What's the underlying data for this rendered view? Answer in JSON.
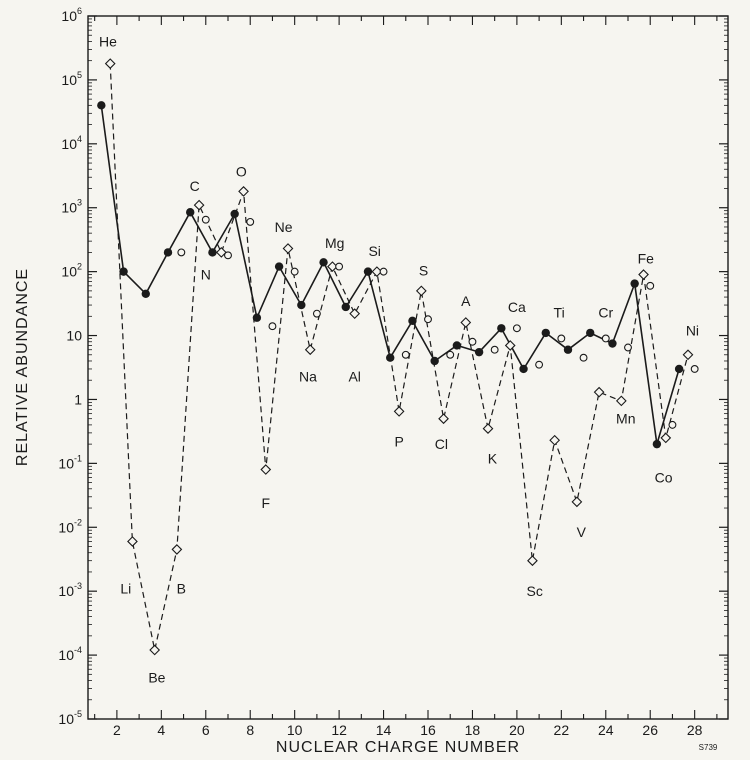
{
  "chart_data": {
    "type": "line",
    "scale_y": "log",
    "grid": false,
    "legend": "none",
    "xlabel": "NUCLEAR CHARGE NUMBER",
    "ylabel": "RELATIVE ABUNDANCE",
    "xlim": [
      0.7,
      29.5
    ],
    "ylim": [
      1e-05,
      1000000
    ],
    "x_ticks": [
      {
        "value": 2,
        "label": "2"
      },
      {
        "value": 4,
        "label": "4"
      },
      {
        "value": 6,
        "label": "6"
      },
      {
        "value": 8,
        "label": "8"
      },
      {
        "value": 10,
        "label": "10"
      },
      {
        "value": 12,
        "label": "12"
      },
      {
        "value": 14,
        "label": "14"
      },
      {
        "value": 16,
        "label": "16"
      },
      {
        "value": 18,
        "label": "18"
      },
      {
        "value": 20,
        "label": "20"
      },
      {
        "value": 22,
        "label": "22"
      },
      {
        "value": 24,
        "label": "24"
      },
      {
        "value": 26,
        "label": "26"
      },
      {
        "value": 28,
        "label": "28"
      }
    ],
    "y_ticks": [
      {
        "value": 1e-05,
        "base": "10",
        "exp": "-5"
      },
      {
        "value": 0.0001,
        "base": "10",
        "exp": "-4"
      },
      {
        "value": 0.001,
        "base": "10",
        "exp": "-3"
      },
      {
        "value": 0.01,
        "base": "10",
        "exp": "-2"
      },
      {
        "value": 0.1,
        "base": "10",
        "exp": "-1"
      },
      {
        "value": 1,
        "base": "1",
        "exp": ""
      },
      {
        "value": 10,
        "base": "10",
        "exp": ""
      },
      {
        "value": 100,
        "base": "10",
        "exp": "2"
      },
      {
        "value": 1000,
        "base": "10",
        "exp": "3"
      },
      {
        "value": 10000,
        "base": "10",
        "exp": "4"
      },
      {
        "value": 100000,
        "base": "10",
        "exp": "5"
      },
      {
        "value": 1000000,
        "base": "10",
        "exp": "6"
      }
    ],
    "series": [
      {
        "marker": "filled-circle",
        "line": "solid",
        "color": "#1b1b1b",
        "points": [
          {
            "x": 1.3,
            "y": 40000
          },
          {
            "x": 2.3,
            "y": 100
          },
          {
            "x": 3.3,
            "y": 45
          },
          {
            "x": 4.3,
            "y": 200
          },
          {
            "x": 5.3,
            "y": 850
          },
          {
            "x": 6.3,
            "y": 200
          },
          {
            "x": 7.3,
            "y": 800
          },
          {
            "x": 8.3,
            "y": 19
          },
          {
            "x": 9.3,
            "y": 120
          },
          {
            "x": 10.3,
            "y": 30
          },
          {
            "x": 11.3,
            "y": 140
          },
          {
            "x": 12.3,
            "y": 28
          },
          {
            "x": 13.3,
            "y": 100
          },
          {
            "x": 14.3,
            "y": 4.5
          },
          {
            "x": 15.3,
            "y": 17
          },
          {
            "x": 16.3,
            "y": 4
          },
          {
            "x": 17.3,
            "y": 7
          },
          {
            "x": 18.3,
            "y": 5.5
          },
          {
            "x": 19.3,
            "y": 13
          },
          {
            "x": 20.3,
            "y": 3
          },
          {
            "x": 21.3,
            "y": 11
          },
          {
            "x": 22.3,
            "y": 6
          },
          {
            "x": 23.3,
            "y": 11
          },
          {
            "x": 24.3,
            "y": 7.5
          },
          {
            "x": 25.3,
            "y": 65
          },
          {
            "x": 26.3,
            "y": 0.2
          },
          {
            "x": 27.3,
            "y": 3
          }
        ]
      },
      {
        "marker": "open-diamond",
        "line": "dashed",
        "color": "#1b1b1b",
        "points": [
          {
            "x": 1.7,
            "y": 180000
          },
          {
            "x": 2.7,
            "y": 0.006
          },
          {
            "x": 3.7,
            "y": 0.00012
          },
          {
            "x": 4.7,
            "y": 0.0045
          },
          {
            "x": 5.7,
            "y": 1100
          },
          {
            "x": 6.7,
            "y": 200
          },
          {
            "x": 7.7,
            "y": 1800
          },
          {
            "x": 8.7,
            "y": 0.08
          },
          {
            "x": 9.7,
            "y": 230
          },
          {
            "x": 10.7,
            "y": 6
          },
          {
            "x": 11.7,
            "y": 120
          },
          {
            "x": 12.7,
            "y": 22
          },
          {
            "x": 13.7,
            "y": 100
          },
          {
            "x": 14.7,
            "y": 0.65
          },
          {
            "x": 15.7,
            "y": 50
          },
          {
            "x": 16.7,
            "y": 0.5
          },
          {
            "x": 17.7,
            "y": 16
          },
          {
            "x": 18.7,
            "y": 0.35
          },
          {
            "x": 19.7,
            "y": 7
          },
          {
            "x": 20.7,
            "y": 0.003
          },
          {
            "x": 21.7,
            "y": 0.23
          },
          {
            "x": 22.7,
            "y": 0.025
          },
          {
            "x": 23.7,
            "y": 1.3
          },
          {
            "x": 24.7,
            "y": 0.95
          },
          {
            "x": 25.7,
            "y": 90
          },
          {
            "x": 26.7,
            "y": 0.25
          },
          {
            "x": 27.7,
            "y": 5
          }
        ]
      },
      {
        "marker": "open-circle",
        "line": "none",
        "color": "#1b1b1b",
        "points": [
          {
            "x": 4.9,
            "y": 200
          },
          {
            "x": 6.0,
            "y": 650
          },
          {
            "x": 7.0,
            "y": 180
          },
          {
            "x": 8.0,
            "y": 600
          },
          {
            "x": 9.0,
            "y": 14
          },
          {
            "x": 10.0,
            "y": 100
          },
          {
            "x": 11.0,
            "y": 22
          },
          {
            "x": 12.0,
            "y": 120
          },
          {
            "x": 14.0,
            "y": 100
          },
          {
            "x": 15.0,
            "y": 5
          },
          {
            "x": 16.0,
            "y": 18
          },
          {
            "x": 17.0,
            "y": 5
          },
          {
            "x": 18.0,
            "y": 8
          },
          {
            "x": 19.0,
            "y": 6
          },
          {
            "x": 20.0,
            "y": 13
          },
          {
            "x": 21.0,
            "y": 3.5
          },
          {
            "x": 22.0,
            "y": 9
          },
          {
            "x": 23.0,
            "y": 4.5
          },
          {
            "x": 24.0,
            "y": 9
          },
          {
            "x": 25.0,
            "y": 6.5
          },
          {
            "x": 26.0,
            "y": 60
          },
          {
            "x": 27.0,
            "y": 0.4
          },
          {
            "x": 28.0,
            "y": 3
          }
        ]
      }
    ],
    "annotations": [
      {
        "text": "He",
        "x": 1.6,
        "y": 400000
      },
      {
        "text": "Li",
        "x": 2.4,
        "y": 0.0011
      },
      {
        "text": "Be",
        "x": 3.8,
        "y": 4.5e-05
      },
      {
        "text": "B",
        "x": 4.9,
        "y": 0.0011
      },
      {
        "text": "C",
        "x": 5.5,
        "y": 2200
      },
      {
        "text": "N",
        "x": 6.0,
        "y": 90
      },
      {
        "text": "O",
        "x": 7.6,
        "y": 3700
      },
      {
        "text": "F",
        "x": 8.7,
        "y": 0.024
      },
      {
        "text": "Ne",
        "x": 9.5,
        "y": 500
      },
      {
        "text": "Na",
        "x": 10.6,
        "y": 2.3
      },
      {
        "text": "Mg",
        "x": 11.8,
        "y": 280
      },
      {
        "text": "Al",
        "x": 12.7,
        "y": 2.3
      },
      {
        "text": "Si",
        "x": 13.6,
        "y": 210
      },
      {
        "text": "P",
        "x": 14.7,
        "y": 0.22
      },
      {
        "text": "S",
        "x": 15.8,
        "y": 105
      },
      {
        "text": "Cl",
        "x": 16.6,
        "y": 0.2
      },
      {
        "text": "A",
        "x": 17.7,
        "y": 35
      },
      {
        "text": "K",
        "x": 18.9,
        "y": 0.12
      },
      {
        "text": "Ca",
        "x": 20.0,
        "y": 28
      },
      {
        "text": "Sc",
        "x": 20.8,
        "y": 0.001
      },
      {
        "text": "Ti",
        "x": 21.9,
        "y": 23
      },
      {
        "text": "V",
        "x": 22.9,
        "y": 0.0085
      },
      {
        "text": "Cr",
        "x": 24.0,
        "y": 23
      },
      {
        "text": "Mn",
        "x": 24.9,
        "y": 0.5
      },
      {
        "text": "Fe",
        "x": 25.8,
        "y": 160
      },
      {
        "text": "Co",
        "x": 26.6,
        "y": 0.06
      },
      {
        "text": "Ni",
        "x": 27.9,
        "y": 12
      }
    ],
    "figure_note": "S739"
  }
}
